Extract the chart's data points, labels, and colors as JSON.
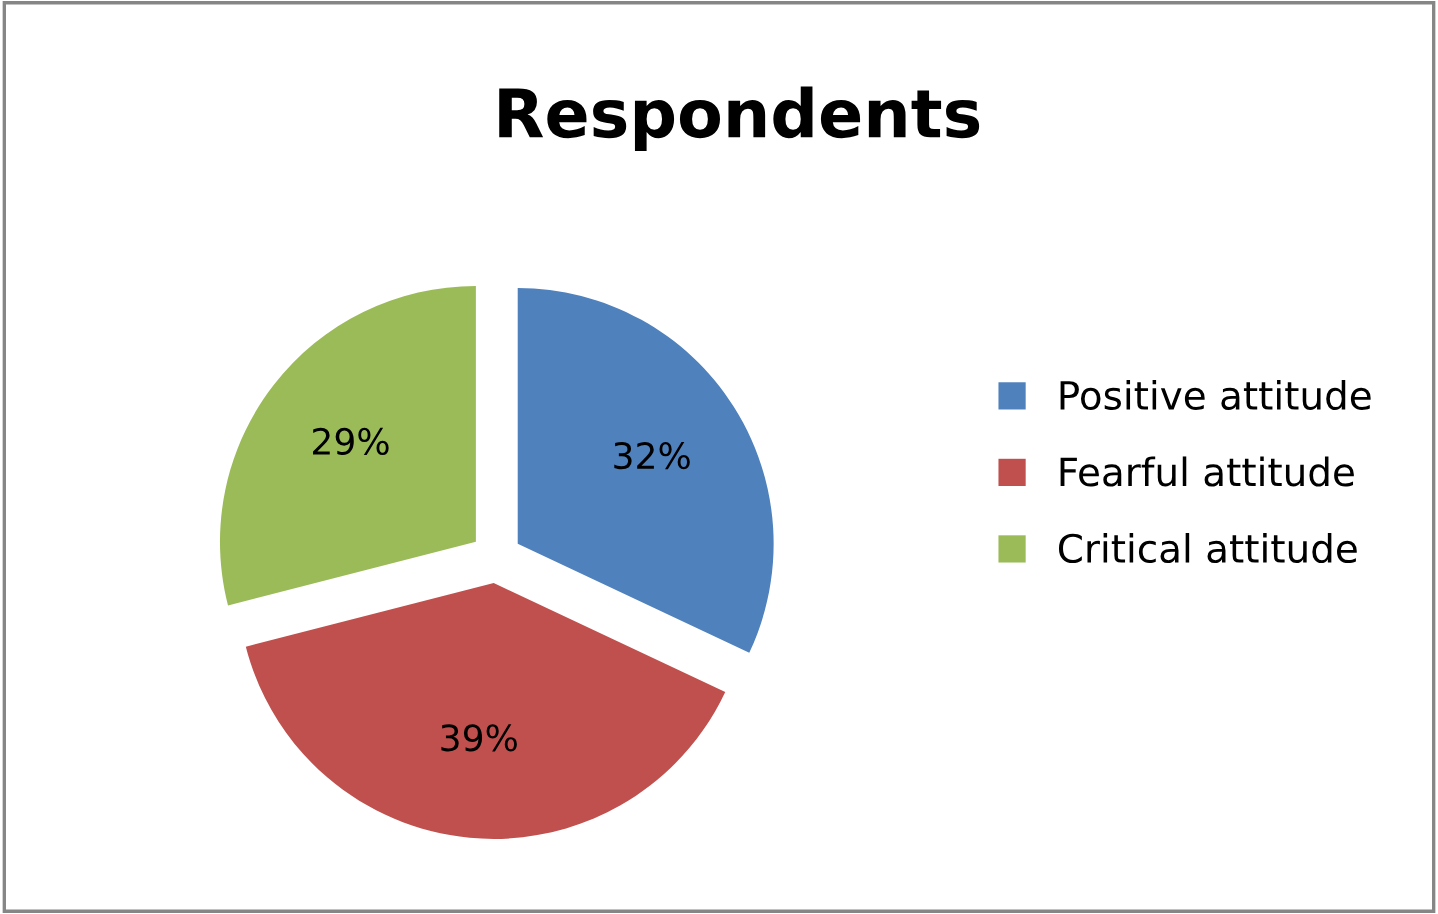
{
  "chart_data": {
    "type": "pie",
    "title": "Respondents",
    "categories": [
      "Positive attitude",
      "Fearful attitude",
      "Critical attitude"
    ],
    "values": [
      32,
      39,
      29
    ],
    "value_labels": [
      "32%",
      "39%",
      "29%"
    ],
    "colors": [
      "#4f81bd",
      "#c0504d",
      "#9bbb59"
    ],
    "legend": "right"
  }
}
